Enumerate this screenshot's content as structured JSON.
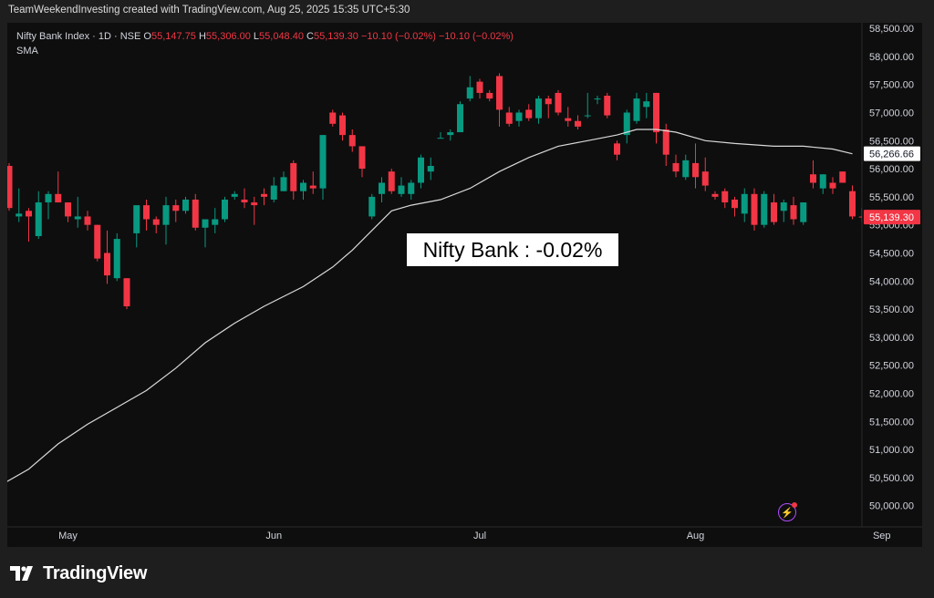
{
  "header": {
    "credit": "TeamWeekendInvesting created with TradingView.com, Aug 25, 2025 15:35 UTC+5:30"
  },
  "legend": {
    "symbol": "Nifty Bank Index · 1D · NSE",
    "o_label": "O",
    "o_value": "55,147.75",
    "h_label": "H",
    "h_value": "55,306.00",
    "l_label": "L",
    "l_value": "55,048.40",
    "c_label": "C",
    "c_value": "55,139.30",
    "change": "−10.10 (−0.02%)",
    "change2": "−10.10 (−0.02%)",
    "sma": "SMA"
  },
  "annotation": "Nifty Bank : -0.02%",
  "footer": {
    "brand": "TradingView"
  },
  "colors": {
    "up": "#089981",
    "down": "#f23645",
    "sma": "#d9d9d9",
    "background": "#0e0e0e",
    "frame": "#1e1e1e"
  },
  "chart_data": {
    "type": "candlestick",
    "title": "Nifty Bank Index · 1D · NSE",
    "ylim": [
      49800,
      58550
    ],
    "y_ticks": [
      "50,000.00",
      "50,500.00",
      "51,000.00",
      "51,500.00",
      "52,000.00",
      "52,500.00",
      "53,000.00",
      "53,500.00",
      "54,000.00",
      "54,500.00",
      "55,000.00",
      "55,500.00",
      "56,000.00",
      "56,500.00",
      "57,000.00",
      "57,500.00",
      "58,000.00",
      "58,500.00"
    ],
    "x_ticks": [
      {
        "label": "May",
        "index": 6
      },
      {
        "label": "Jun",
        "index": 27
      },
      {
        "label": "Jul",
        "index": 48
      },
      {
        "label": "Aug",
        "index": 70
      },
      {
        "label": "Sep",
        "index": 89
      }
    ],
    "price_labels": [
      {
        "text": "56,266.66",
        "value": 56266.66,
        "kind": "sma"
      },
      {
        "text": "55,139.30",
        "value": 55139.3,
        "kind": "last"
      }
    ],
    "candles": [
      {
        "o": 56050,
        "h": 56100,
        "l": 55250,
        "c": 55300
      },
      {
        "o": 55150,
        "h": 55650,
        "l": 55050,
        "c": 55200
      },
      {
        "o": 55250,
        "h": 55300,
        "l": 54700,
        "c": 55150
      },
      {
        "o": 54800,
        "h": 55600,
        "l": 54750,
        "c": 55400
      },
      {
        "o": 55400,
        "h": 55600,
        "l": 55100,
        "c": 55550
      },
      {
        "o": 55550,
        "h": 55950,
        "l": 55400,
        "c": 55400
      },
      {
        "o": 55400,
        "h": 55400,
        "l": 55050,
        "c": 55150
      },
      {
        "o": 55100,
        "h": 55500,
        "l": 54950,
        "c": 55150
      },
      {
        "o": 55150,
        "h": 55250,
        "l": 54900,
        "c": 55000
      },
      {
        "o": 55000,
        "h": 55000,
        "l": 54350,
        "c": 54400
      },
      {
        "o": 54500,
        "h": 54900,
        "l": 53950,
        "c": 54100
      },
      {
        "o": 54050,
        "h": 54850,
        "l": 54000,
        "c": 54750
      },
      {
        "o": 54050,
        "h": 54050,
        "l": 53500,
        "c": 53550
      },
      {
        "o": 54850,
        "h": 55300,
        "l": 54600,
        "c": 55350
      },
      {
        "o": 55350,
        "h": 55450,
        "l": 54900,
        "c": 55100
      },
      {
        "o": 55100,
        "h": 55150,
        "l": 54850,
        "c": 55000
      },
      {
        "o": 55000,
        "h": 55500,
        "l": 54650,
        "c": 55350
      },
      {
        "o": 55350,
        "h": 55450,
        "l": 55050,
        "c": 55250
      },
      {
        "o": 55250,
        "h": 55500,
        "l": 55200,
        "c": 55450
      },
      {
        "o": 55450,
        "h": 55550,
        "l": 54900,
        "c": 54950
      },
      {
        "o": 54950,
        "h": 55100,
        "l": 54600,
        "c": 55100
      },
      {
        "o": 55000,
        "h": 55300,
        "l": 54850,
        "c": 55100
      },
      {
        "o": 55100,
        "h": 55500,
        "l": 55050,
        "c": 55450
      },
      {
        "o": 55500,
        "h": 55600,
        "l": 55450,
        "c": 55550
      },
      {
        "o": 55450,
        "h": 55650,
        "l": 55300,
        "c": 55400
      },
      {
        "o": 55400,
        "h": 55500,
        "l": 55000,
        "c": 55350
      },
      {
        "o": 55550,
        "h": 55650,
        "l": 55350,
        "c": 55500
      },
      {
        "o": 55450,
        "h": 55850,
        "l": 55400,
        "c": 55700
      },
      {
        "o": 55600,
        "h": 55950,
        "l": 55600,
        "c": 55850
      },
      {
        "o": 56100,
        "h": 56150,
        "l": 55450,
        "c": 55600
      },
      {
        "o": 55600,
        "h": 55800,
        "l": 55450,
        "c": 55750
      },
      {
        "o": 55700,
        "h": 55950,
        "l": 55550,
        "c": 55650
      },
      {
        "o": 55650,
        "h": 56600,
        "l": 55450,
        "c": 56600
      },
      {
        "o": 57000,
        "h": 57050,
        "l": 56750,
        "c": 56800
      },
      {
        "o": 56950,
        "h": 57000,
        "l": 56500,
        "c": 56600
      },
      {
        "o": 56600,
        "h": 56700,
        "l": 56300,
        "c": 56400
      },
      {
        "o": 56400,
        "h": 56400,
        "l": 55850,
        "c": 56000
      },
      {
        "o": 55150,
        "h": 55550,
        "l": 55100,
        "c": 55500
      },
      {
        "o": 55550,
        "h": 55850,
        "l": 55400,
        "c": 55750
      },
      {
        "o": 55950,
        "h": 56000,
        "l": 55550,
        "c": 55600
      },
      {
        "o": 55550,
        "h": 55850,
        "l": 55500,
        "c": 55700
      },
      {
        "o": 55550,
        "h": 55800,
        "l": 55450,
        "c": 55750
      },
      {
        "o": 55750,
        "h": 56250,
        "l": 55650,
        "c": 56200
      },
      {
        "o": 55950,
        "h": 56200,
        "l": 55800,
        "c": 56050
      },
      {
        "o": 56550,
        "h": 56650,
        "l": 56550,
        "c": 56550
      },
      {
        "o": 56600,
        "h": 56700,
        "l": 56500,
        "c": 56650
      },
      {
        "o": 56650,
        "h": 57200,
        "l": 56650,
        "c": 57150
      },
      {
        "o": 57250,
        "h": 57650,
        "l": 57200,
        "c": 57450
      },
      {
        "o": 57550,
        "h": 57600,
        "l": 57250,
        "c": 57350
      },
      {
        "o": 57350,
        "h": 57400,
        "l": 57200,
        "c": 57250
      },
      {
        "o": 57650,
        "h": 57700,
        "l": 56750,
        "c": 57050
      },
      {
        "o": 57000,
        "h": 57100,
        "l": 56750,
        "c": 56800
      },
      {
        "o": 56850,
        "h": 57050,
        "l": 56750,
        "c": 57000
      },
      {
        "o": 57050,
        "h": 57150,
        "l": 56850,
        "c": 56900
      },
      {
        "o": 56900,
        "h": 57300,
        "l": 56800,
        "c": 57250
      },
      {
        "o": 57250,
        "h": 57300,
        "l": 56900,
        "c": 57150
      },
      {
        "o": 57350,
        "h": 57400,
        "l": 56950,
        "c": 57000
      },
      {
        "o": 56900,
        "h": 57100,
        "l": 56750,
        "c": 56850
      },
      {
        "o": 56850,
        "h": 56950,
        "l": 56700,
        "c": 56750
      },
      {
        "o": 56950,
        "h": 57350,
        "l": 56900,
        "c": 56950
      },
      {
        "o": 57250,
        "h": 57300,
        "l": 57150,
        "c": 57250
      },
      {
        "o": 57300,
        "h": 57350,
        "l": 56900,
        "c": 56950
      },
      {
        "o": 56450,
        "h": 56500,
        "l": 56150,
        "c": 56250
      },
      {
        "o": 56600,
        "h": 57050,
        "l": 56450,
        "c": 57000
      },
      {
        "o": 56850,
        "h": 57350,
        "l": 56800,
        "c": 57250
      },
      {
        "o": 57100,
        "h": 57350,
        "l": 56900,
        "c": 57200
      },
      {
        "o": 57350,
        "h": 57350,
        "l": 56450,
        "c": 56650
      },
      {
        "o": 56700,
        "h": 56800,
        "l": 56050,
        "c": 56250
      },
      {
        "o": 56100,
        "h": 56250,
        "l": 55850,
        "c": 55950
      },
      {
        "o": 55850,
        "h": 56250,
        "l": 55800,
        "c": 56150
      },
      {
        "o": 56100,
        "h": 56450,
        "l": 55650,
        "c": 55850
      },
      {
        "o": 55950,
        "h": 56200,
        "l": 55600,
        "c": 55700
      },
      {
        "o": 55550,
        "h": 55600,
        "l": 55450,
        "c": 55500
      },
      {
        "o": 55600,
        "h": 55650,
        "l": 55300,
        "c": 55400
      },
      {
        "o": 55450,
        "h": 55500,
        "l": 55150,
        "c": 55300
      },
      {
        "o": 55200,
        "h": 55650,
        "l": 55050,
        "c": 55550
      },
      {
        "o": 55550,
        "h": 55650,
        "l": 54900,
        "c": 55000
      },
      {
        "o": 55000,
        "h": 55600,
        "l": 54950,
        "c": 55550
      },
      {
        "o": 55400,
        "h": 55550,
        "l": 55000,
        "c": 55050
      },
      {
        "o": 55250,
        "h": 55450,
        "l": 55050,
        "c": 55400
      },
      {
        "o": 55350,
        "h": 55500,
        "l": 55000,
        "c": 55100
      },
      {
        "o": 55050,
        "h": 55400,
        "l": 55000,
        "c": 55400
      },
      {
        "o": 55900,
        "h": 56150,
        "l": 55650,
        "c": 55750
      },
      {
        "o": 55650,
        "h": 55900,
        "l": 55550,
        "c": 55900
      },
      {
        "o": 55750,
        "h": 55850,
        "l": 55550,
        "c": 55650
      },
      {
        "o": 55950,
        "h": 55950,
        "l": 55750,
        "c": 55750
      },
      {
        "o": 55600,
        "h": 55700,
        "l": 55100,
        "c": 55150
      },
      {
        "o": 55147.75,
        "h": 55306,
        "l": 55048.4,
        "c": 55139.3
      }
    ],
    "sma_series": [
      {
        "i": -1,
        "v": 50350
      },
      {
        "i": 2,
        "v": 50650
      },
      {
        "i": 5,
        "v": 51100
      },
      {
        "i": 8,
        "v": 51450
      },
      {
        "i": 11,
        "v": 51750
      },
      {
        "i": 14,
        "v": 52050
      },
      {
        "i": 17,
        "v": 52450
      },
      {
        "i": 20,
        "v": 52900
      },
      {
        "i": 23,
        "v": 53250
      },
      {
        "i": 26,
        "v": 53550
      },
      {
        "i": 30,
        "v": 53900
      },
      {
        "i": 33,
        "v": 54250
      },
      {
        "i": 35,
        "v": 54550
      },
      {
        "i": 37,
        "v": 54900
      },
      {
        "i": 39,
        "v": 55250
      },
      {
        "i": 41,
        "v": 55350
      },
      {
        "i": 44,
        "v": 55450
      },
      {
        "i": 47,
        "v": 55650
      },
      {
        "i": 50,
        "v": 55950
      },
      {
        "i": 53,
        "v": 56200
      },
      {
        "i": 56,
        "v": 56400
      },
      {
        "i": 59,
        "v": 56500
      },
      {
        "i": 62,
        "v": 56600
      },
      {
        "i": 64,
        "v": 56700
      },
      {
        "i": 66,
        "v": 56700
      },
      {
        "i": 68,
        "v": 56650
      },
      {
        "i": 71,
        "v": 56500
      },
      {
        "i": 74,
        "v": 56450
      },
      {
        "i": 78,
        "v": 56400
      },
      {
        "i": 81,
        "v": 56400
      },
      {
        "i": 84,
        "v": 56350
      },
      {
        "i": 86,
        "v": 56266.66
      }
    ]
  }
}
